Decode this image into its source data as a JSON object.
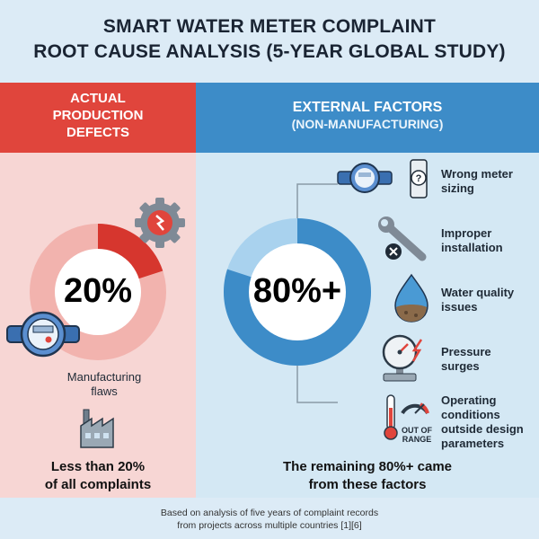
{
  "title_line1": "SMART WATER METER COMPLAINT",
  "title_line2": "ROOT CAUSE ANALYSIS (5-YEAR GLOBAL STUDY)",
  "left": {
    "header": [
      "ACTUAL",
      "PRODUCTION",
      "DEFECTS"
    ],
    "percent": "20%",
    "label_line1": "Manufacturing",
    "label_line2": "flaws",
    "bottom_line1": "Less than 20%",
    "bottom_line2": "of all complaints",
    "color": "#e0453c"
  },
  "right": {
    "header_line1": "EXTERNAL FACTORS",
    "header_line2": "(NON-MANUFACTURING)",
    "percent": "80%+",
    "bottom_line1": "The remaining 80%+ came",
    "bottom_line2": "from these factors",
    "color": "#3d8cc8",
    "factors": [
      {
        "line1": "Wrong meter",
        "line2": "sizing",
        "icon": "meter-sizing-icon"
      },
      {
        "line1": "Improper",
        "line2": "installation",
        "icon": "wrench-error-icon"
      },
      {
        "line1": "Water quality",
        "line2": "issues",
        "icon": "water-drop-icon"
      },
      {
        "line1": "Pressure",
        "line2": "surges",
        "icon": "pressure-gauge-icon"
      },
      {
        "line1": "Operating",
        "line2": "conditions",
        "line3": "outside design",
        "line4": "parameters",
        "icon": "thermometer-gauge-icon"
      }
    ],
    "out_of_range_line1": "OUT OF",
    "out_of_range_line2": "RANGE"
  },
  "chart_data": {
    "type": "pie",
    "categories": [
      "Manufacturing flaws",
      "External factors"
    ],
    "values": [
      20,
      80
    ]
  },
  "footer_line1": "Based on analysis of five years of complaint records",
  "footer_line2": "from projects across multiple countries [1][6]"
}
